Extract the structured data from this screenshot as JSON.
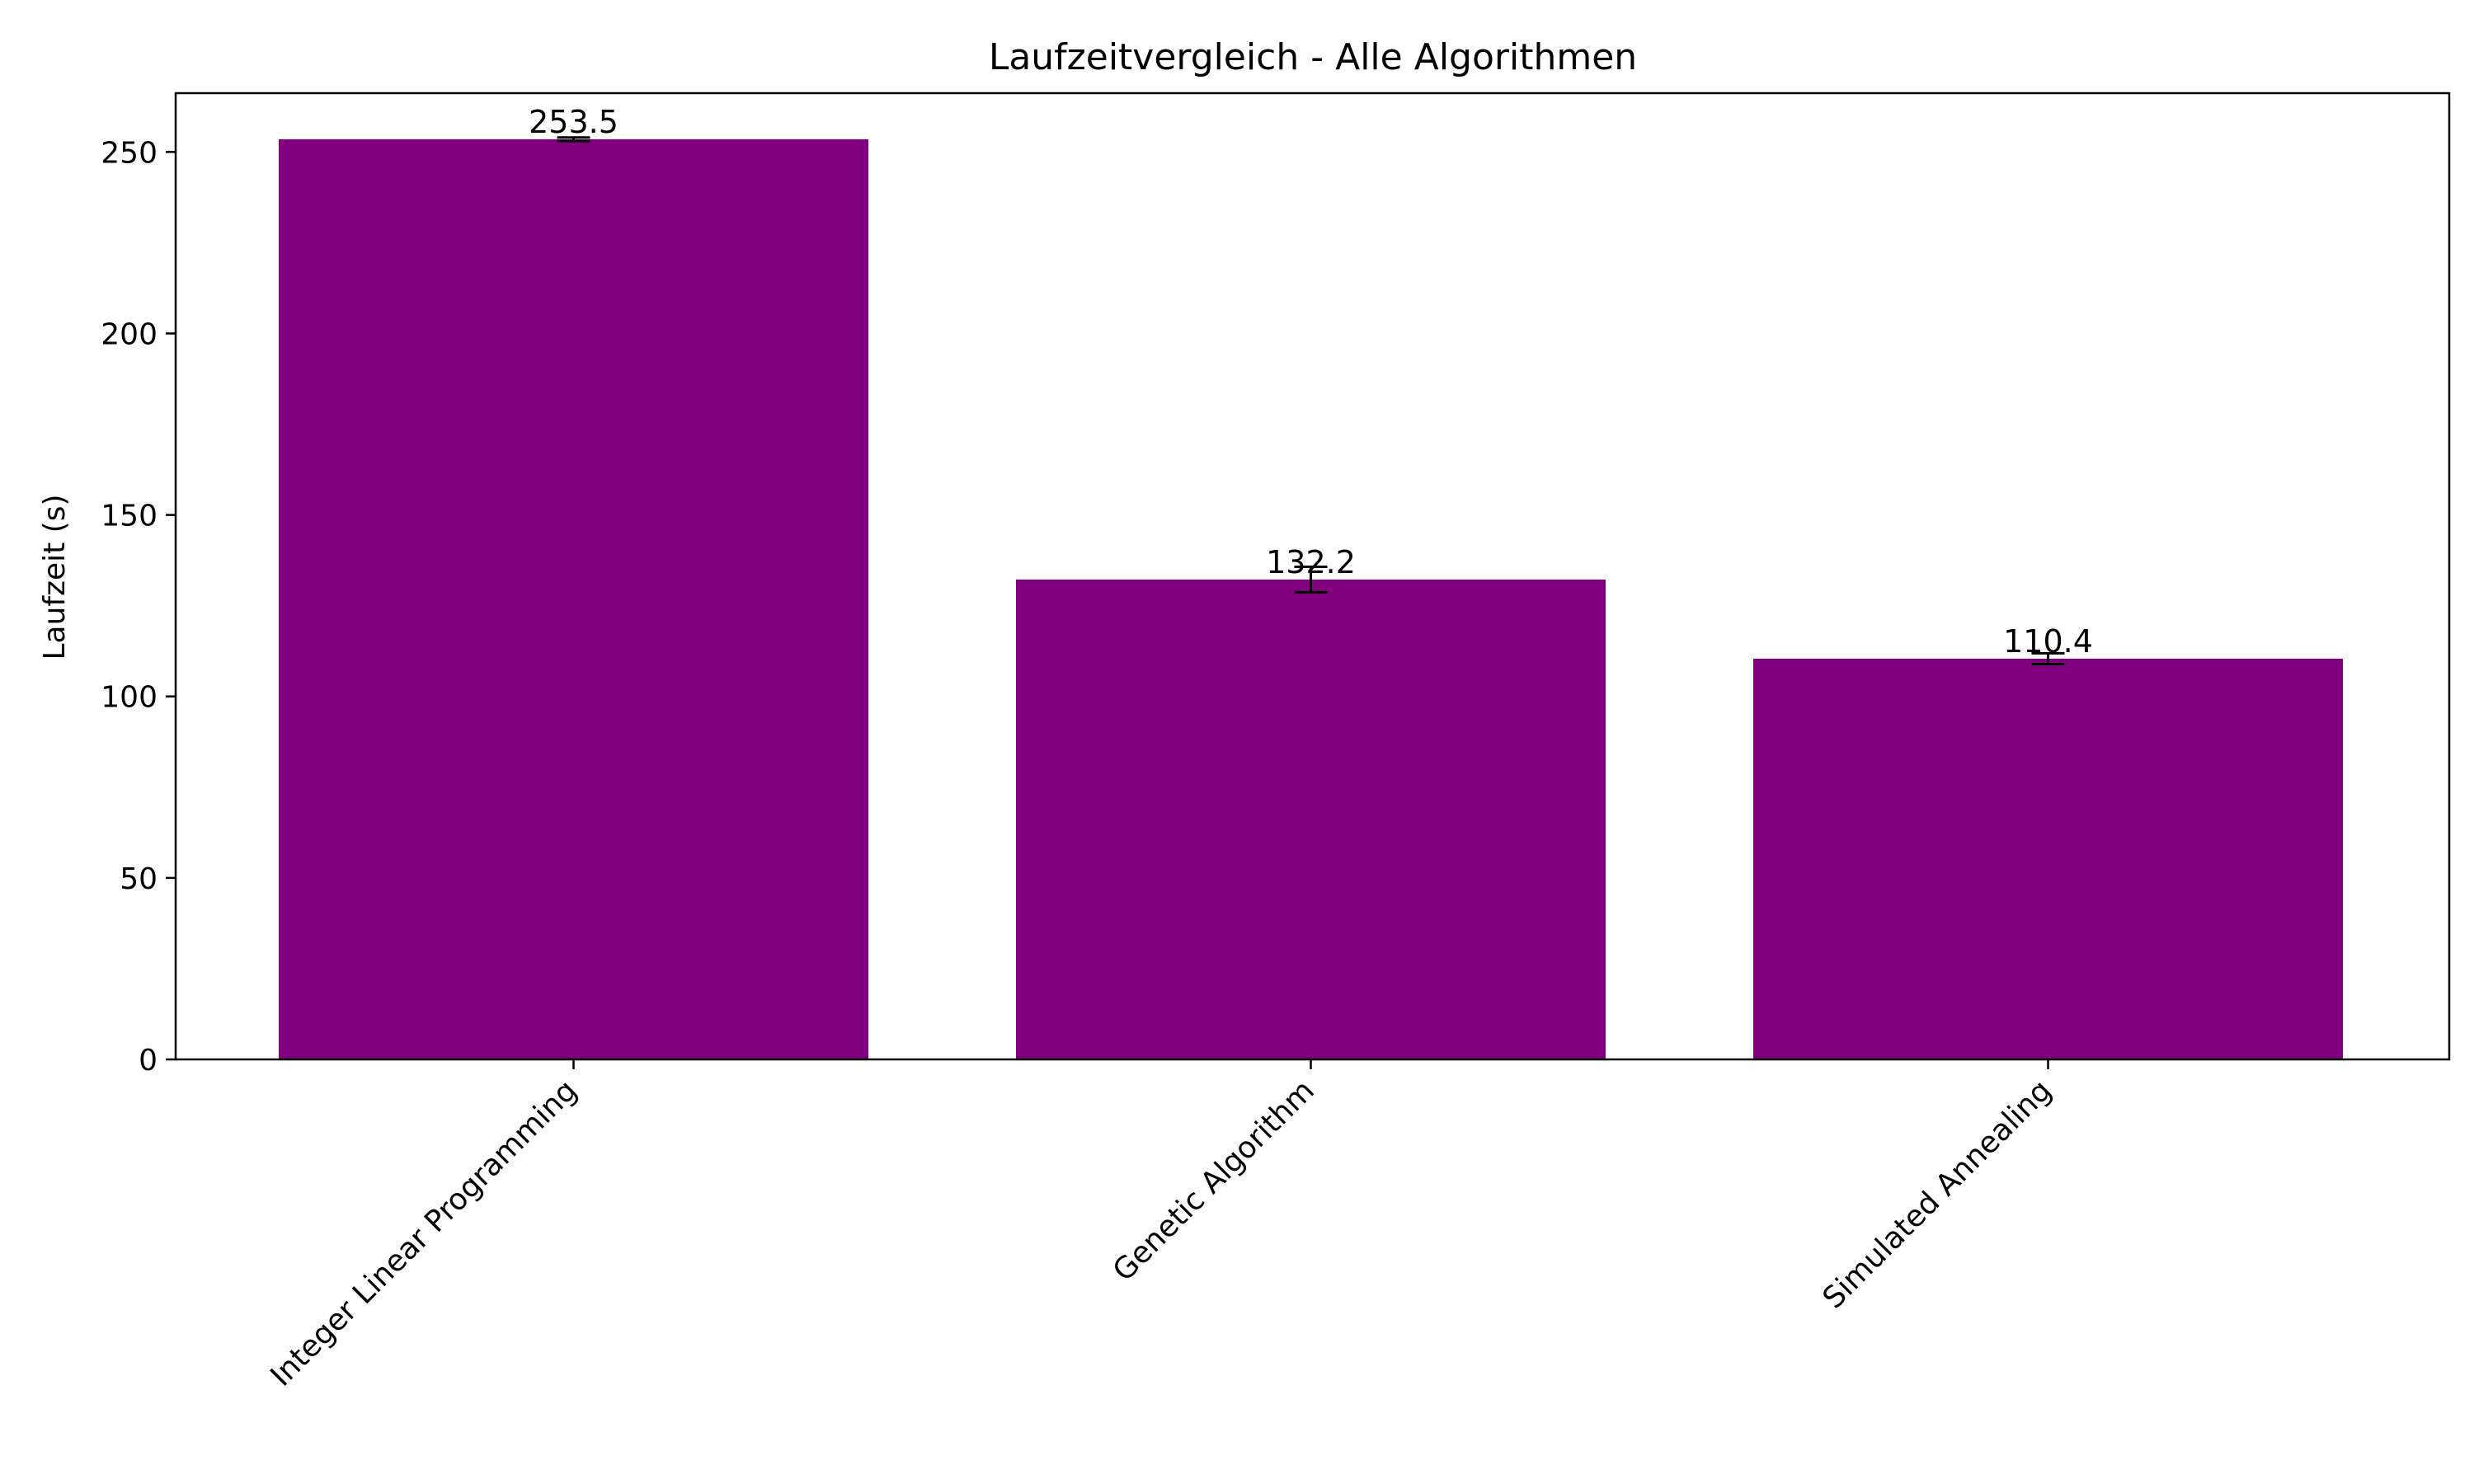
{
  "chart_data": {
    "type": "bar",
    "title": "Laufzeitvergleich - Alle Algorithmen",
    "xlabel": "",
    "ylabel": "Laufzeit (s)",
    "categories": [
      "Integer Linear Programming",
      "Genetic Algorithm",
      "Simulated Annealing"
    ],
    "values": [
      253.5,
      132.2,
      110.4
    ],
    "errors": [
      0.5,
      3.5,
      1.5
    ],
    "data_labels": [
      "253.5",
      "132.2",
      "110.4"
    ],
    "ylim": [
      0,
      266.2
    ],
    "yticks": [
      0,
      50,
      100,
      150,
      200,
      250
    ],
    "ytick_labels": [
      "0",
      "50",
      "100",
      "150",
      "200",
      "250"
    ],
    "bar_color": "#800080",
    "error_color": "#000000",
    "grid": false,
    "legend": "none"
  }
}
